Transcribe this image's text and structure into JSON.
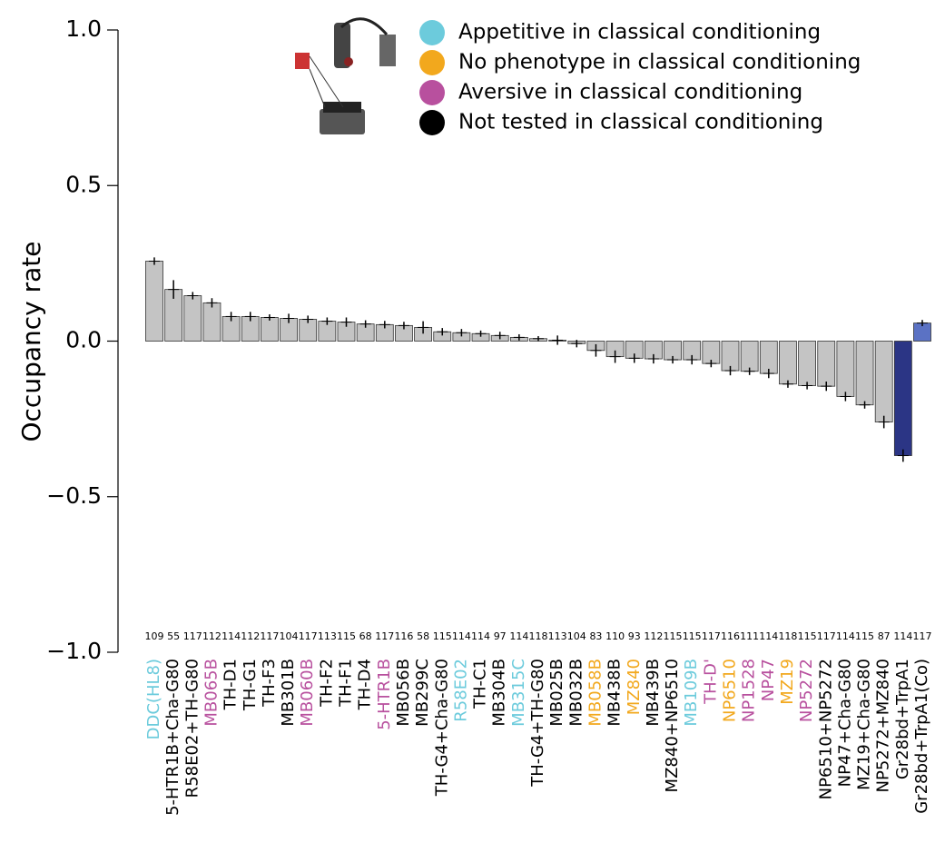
{
  "chart_data": {
    "type": "bar",
    "y_label": "Occupancy rate",
    "categories": [
      "DDC(HL8)",
      "5-HTR1B+Cha-G80",
      "R58E02+TH-G80",
      "MB065B",
      "TH-D1",
      "TH-G1",
      "TH-F3",
      "MB301B",
      "MB060B",
      "TH-F2",
      "TH-F1",
      "TH-D4",
      "5-HTR1B",
      "MB056B",
      "MB299C",
      "TH-G4+Cha-G80",
      "R58E02",
      "TH-C1",
      "MB304B",
      "MB315C",
      "TH-G4+TH-G80",
      "MB025B",
      "MB032B",
      "MB058B",
      "MB438B",
      "MZ840",
      "MB439B",
      "MZ840+NP6510",
      "MB109B",
      "TH-D'",
      "NP6510",
      "NP1528",
      "NP47",
      "MZ19",
      "NP5272",
      "NP6510+NP5272",
      "NP47+Cha-G80",
      "MZ19+Cha-G80",
      "NP5272+MZ840",
      "Gr28bd+TrpA1",
      "Gr28bd+TrpA1(Co)"
    ],
    "category_colors": [
      "#6ccbdc",
      "#000000",
      "#000000",
      "#b8509e",
      "#000000",
      "#000000",
      "#000000",
      "#000000",
      "#b8509e",
      "#000000",
      "#000000",
      "#000000",
      "#b8509e",
      "#000000",
      "#000000",
      "#000000",
      "#6ccbdc",
      "#000000",
      "#000000",
      "#6ccbdc",
      "#000000",
      "#000000",
      "#000000",
      "#f2a81d",
      "#000000",
      "#f2a81d",
      "#000000",
      "#000000",
      "#6ccbdc",
      "#b8509e",
      "#f2a81d",
      "#b8509e",
      "#b8509e",
      "#f2a81d",
      "#b8509e",
      "#000000",
      "#000000",
      "#000000",
      "#000000",
      "#000000",
      "#000000"
    ],
    "n": [
      109,
      55,
      117,
      112,
      114,
      112,
      117,
      104,
      117,
      113,
      115,
      68,
      117,
      116,
      58,
      115,
      114,
      114,
      97,
      114,
      118,
      113,
      104,
      83,
      110,
      93,
      112,
      115,
      115,
      117,
      116,
      111,
      114,
      118,
      115,
      117,
      114,
      115,
      87,
      114,
      117
    ],
    "values": [
      0.257,
      0.166,
      0.146,
      0.123,
      0.079,
      0.079,
      0.076,
      0.073,
      0.07,
      0.064,
      0.061,
      0.055,
      0.053,
      0.05,
      0.044,
      0.03,
      0.027,
      0.024,
      0.018,
      0.012,
      0.008,
      0.003,
      -0.008,
      -0.03,
      -0.05,
      -0.055,
      -0.057,
      -0.06,
      -0.06,
      -0.072,
      -0.095,
      -0.097,
      -0.104,
      -0.138,
      -0.143,
      -0.145,
      -0.178,
      -0.205,
      -0.26,
      -0.368,
      0.058
    ],
    "errors": [
      0.012,
      0.03,
      0.012,
      0.015,
      0.015,
      0.015,
      0.01,
      0.015,
      0.012,
      0.012,
      0.015,
      0.012,
      0.012,
      0.012,
      0.02,
      0.012,
      0.012,
      0.01,
      0.012,
      0.01,
      0.008,
      0.015,
      0.012,
      0.02,
      0.02,
      0.015,
      0.015,
      0.012,
      0.015,
      0.012,
      0.015,
      0.012,
      0.015,
      0.012,
      0.012,
      0.015,
      0.015,
      0.012,
      0.02,
      0.02,
      0.01
    ],
    "bar_colors": [
      "#c4c4c4",
      "#c4c4c4",
      "#c4c4c4",
      "#c4c4c4",
      "#c4c4c4",
      "#c4c4c4",
      "#c4c4c4",
      "#c4c4c4",
      "#c4c4c4",
      "#c4c4c4",
      "#c4c4c4",
      "#c4c4c4",
      "#c4c4c4",
      "#c4c4c4",
      "#c4c4c4",
      "#c4c4c4",
      "#c4c4c4",
      "#c4c4c4",
      "#c4c4c4",
      "#c4c4c4",
      "#c4c4c4",
      "#c4c4c4",
      "#c4c4c4",
      "#c4c4c4",
      "#c4c4c4",
      "#c4c4c4",
      "#c4c4c4",
      "#c4c4c4",
      "#c4c4c4",
      "#c4c4c4",
      "#c4c4c4",
      "#c4c4c4",
      "#c4c4c4",
      "#c4c4c4",
      "#c4c4c4",
      "#c4c4c4",
      "#c4c4c4",
      "#c4c4c4",
      "#c4c4c4",
      "#2b3585",
      "#5b72c4"
    ],
    "ylim": [
      -1,
      1
    ],
    "yticks": [
      {
        "value": 1,
        "label": "1.0"
      },
      {
        "value": 0.5,
        "label": "0.5"
      },
      {
        "value": 0,
        "label": "0.0"
      },
      {
        "value": -0.5,
        "label": "−0.5"
      },
      {
        "value": -1,
        "label": "−1.0"
      }
    ],
    "legend": [
      {
        "label": "Appetitive in classical conditioning",
        "color": "#6ccbdc"
      },
      {
        "label": "No phenotype in classical conditioning",
        "color": "#f2a81d"
      },
      {
        "label": "Aversive in classical conditioning",
        "color": "#b8509e"
      },
      {
        "label": "Not tested in classical conditioning",
        "color": "#000000"
      }
    ]
  }
}
